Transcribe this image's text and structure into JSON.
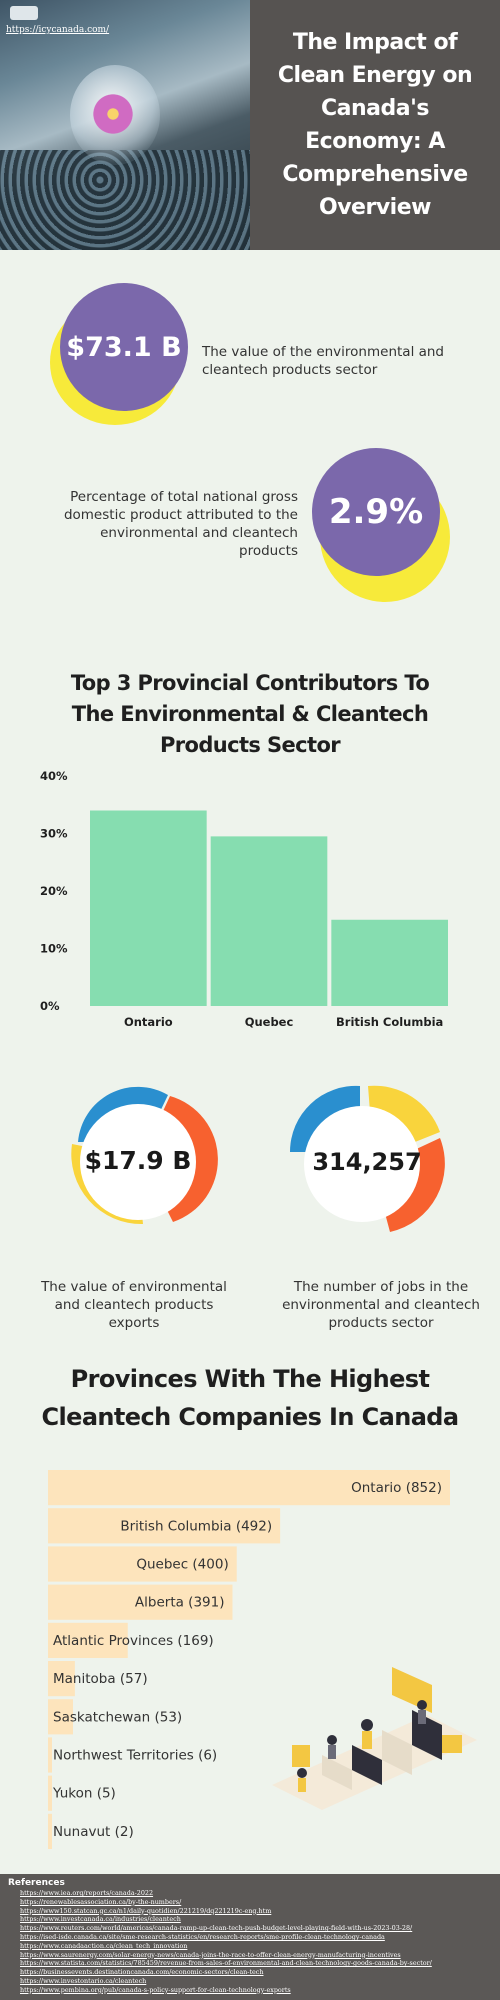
{
  "header": {
    "url": "https://icycanada.com/",
    "title": "The Impact of Clean Energy on Canada's Economy: A Comprehensive Overview"
  },
  "stats": {
    "sector_value": {
      "value": "$73.1 B",
      "caption": "The value of the environmental and cleantech products sector"
    },
    "gdp_share": {
      "value": "2.9%",
      "caption": "Percentage of total national gross domestic product attributed to the environmental and cleantech products"
    },
    "exports": {
      "value": "$17.9 B",
      "caption": "The value of environmental and cleantech products exports"
    },
    "jobs": {
      "value": "314,257",
      "caption": "The number of jobs in the environmental and cleantech products sector"
    }
  },
  "colors": {
    "purple": "#7b68ab",
    "yellow": "#f7ea3a",
    "bar_green": "#86ddb0",
    "bar_peach": "#fde4bc",
    "donut_blue": "#2a8fcf",
    "donut_orange": "#f7612f",
    "donut_yellow": "#f9d43c",
    "header_gray": "#565351"
  },
  "chart_data": [
    {
      "type": "bar",
      "title": "Top 3 Provincial Contributors To The Environmental & Cleantech Products Sector",
      "categories": [
        "Ontario",
        "Quebec",
        "British Columbia"
      ],
      "values": [
        34,
        29.5,
        15
      ],
      "ylim": [
        0,
        40
      ],
      "yticks": [
        "0%",
        "10%",
        "20%",
        "30%",
        "40%"
      ],
      "ytick_values": [
        0,
        10,
        20,
        30,
        40
      ],
      "grid": false
    },
    {
      "type": "bar",
      "orientation": "horizontal",
      "title": "Provinces With The Highest Cleantech Companies In Canada",
      "categories": [
        "Ontario",
        "British Columbia",
        "Quebec",
        "Alberta",
        "Atlantic Provinces",
        "Manitoba",
        "Saskatchewan",
        "Northwest Territories",
        "Yukon",
        "Nunavut"
      ],
      "values": [
        852,
        492,
        400,
        391,
        169,
        57,
        53,
        6,
        5,
        2
      ],
      "labels": [
        "Ontario (852)",
        "British Columbia (492)",
        "Quebec (400)",
        "Alberta (391)",
        "Atlantic Provinces (169)",
        "Manitoba (57)",
        "Saskatchewan (53)",
        "Northwest Territories (6)",
        "Yukon (5)",
        "Nunavut (2)"
      ]
    }
  ],
  "references": {
    "title": "References",
    "items": [
      "https://www.iea.org/reports/canada-2022",
      "https://renewablesassociation.ca/by-the-numbers/",
      "https://www150.statcan.gc.ca/n1/daily-quotidien/221219/dq221219c-eng.htm",
      "https://www.investcanada.ca/industries/cleantech",
      "https://www.reuters.com/world/americas/canada-ramp-up-clean-tech-push-budget-level-playing-field-with-us-2023-03-28/",
      "https://ised-isde.canada.ca/site/sme-research-statistics/en/research-reports/sme-profile-clean-technology-canada",
      "https://www.canadaaction.ca/clean_tech_innovation",
      "https://www.saurenergy.com/solar-energy-news/canada-joins-the-race-to-offer-clean-energy-manufacturing-incentives",
      "https://www.statista.com/statistics/785459/revenue-from-sales-of-environmental-and-clean-technology-goods-canada-by-sector/",
      "https://businessevents.destinationcanada.com/economic-sectors/clean-tech",
      "https://www.investontario.ca/cleantech",
      "https://www.pembina.org/pub/canada-s-policy-support-for-clean-technology-exports"
    ]
  }
}
